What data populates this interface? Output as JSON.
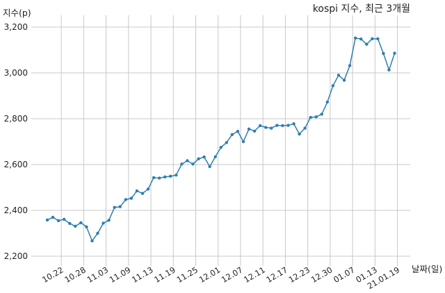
{
  "chart_data": {
    "type": "line",
    "title": "kospi 지수, 최근 3개월",
    "xlabel": "날짜(일)",
    "ylabel": "지수(p)",
    "ylim": [
      2200,
      3200
    ],
    "y_ticks": [
      2200,
      2400,
      2600,
      2800,
      3000,
      3200
    ],
    "y_tick_labels": [
      "2,200",
      "2,400",
      "2,600",
      "2,800",
      "3,000",
      "3,200"
    ],
    "x_ticks": [
      {
        "index": 2.5,
        "label": "10.22"
      },
      {
        "index": 6.5,
        "label": "10.28"
      },
      {
        "index": 10.5,
        "label": "11.03"
      },
      {
        "index": 14.5,
        "label": "11.09"
      },
      {
        "index": 18.5,
        "label": "11.13"
      },
      {
        "index": 22.5,
        "label": "11.19"
      },
      {
        "index": 26.5,
        "label": "11.25"
      },
      {
        "index": 30.5,
        "label": "12.01"
      },
      {
        "index": 34.5,
        "label": "12.07"
      },
      {
        "index": 38.5,
        "label": "12.11"
      },
      {
        "index": 42.5,
        "label": "12.17"
      },
      {
        "index": 46.5,
        "label": "12.23"
      },
      {
        "index": 50.5,
        "label": "12.30"
      },
      {
        "index": 54.5,
        "label": "01.07"
      },
      {
        "index": 58.5,
        "label": "01.13"
      },
      {
        "index": 62.5,
        "label": "21.01.19"
      }
    ],
    "grid": true,
    "series": [
      {
        "color": "#2e7eb1",
        "values": [
          2358,
          2370,
          2355,
          2361,
          2343,
          2331,
          2346,
          2328,
          2267,
          2300,
          2344,
          2357,
          2413,
          2416,
          2447,
          2453,
          2485,
          2474,
          2493,
          2543,
          2541,
          2546,
          2549,
          2554,
          2602,
          2617,
          2602,
          2625,
          2633,
          2591,
          2634,
          2675,
          2696,
          2731,
          2745,
          2700,
          2755,
          2746,
          2770,
          2762,
          2759,
          2771,
          2770,
          2771,
          2778,
          2733,
          2759,
          2806,
          2808,
          2820,
          2873,
          2944,
          2990,
          2968,
          3032,
          3152,
          3148,
          3125,
          3149,
          3149,
          3085,
          3013,
          3086
        ]
      }
    ]
  }
}
